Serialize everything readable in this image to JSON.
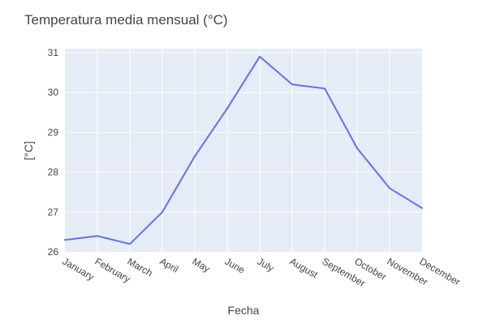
{
  "chart_data": {
    "type": "line",
    "title": "Temperatura media mensual (°C)",
    "xlabel": "Fecha",
    "ylabel": "[°C]",
    "categories": [
      "January",
      "February",
      "March",
      "April",
      "May",
      "June",
      "July",
      "August",
      "September",
      "October",
      "November",
      "December"
    ],
    "series": [
      {
        "values": [
          26.3,
          26.4,
          26.2,
          27.0,
          28.4,
          29.6,
          30.9,
          30.2,
          30.1,
          28.6,
          27.6,
          27.1
        ]
      }
    ],
    "ylim": [
      26,
      31.1
    ],
    "yticks": [
      26,
      27,
      28,
      29,
      30,
      31
    ],
    "grid": true,
    "legend": "none",
    "colors": {
      "line": "#636efa",
      "plot_bg": "#e5ecf6",
      "grid": "#ffffff",
      "text": "#444444"
    }
  }
}
